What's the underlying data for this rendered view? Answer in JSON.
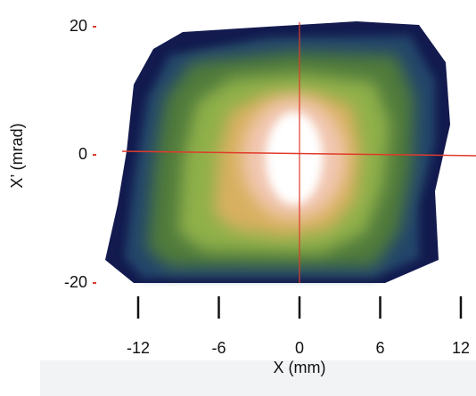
{
  "chart_data": {
    "type": "heatmap",
    "xlabel": "X (mm)",
    "ylabel": "X’ (mrad)",
    "xlim": [
      -12,
      12
    ],
    "xticks": [
      -12,
      -6,
      0,
      6,
      12
    ],
    "ylim": [
      -20,
      20
    ],
    "yticks": [
      20,
      0,
      -20
    ]
  }
}
